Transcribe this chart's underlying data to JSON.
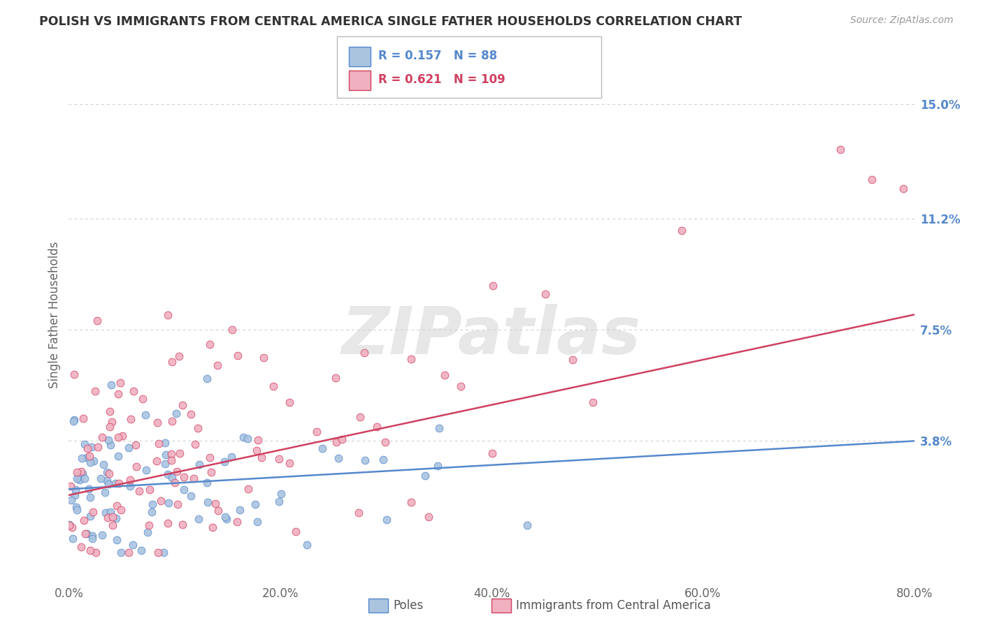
{
  "title": "POLISH VS IMMIGRANTS FROM CENTRAL AMERICA SINGLE FATHER HOUSEHOLDS CORRELATION CHART",
  "source_text": "Source: ZipAtlas.com",
  "watermark": "ZIPatlas",
  "ylabel": "Single Father Households",
  "xlabel_ticks": [
    "0.0%",
    "20.0%",
    "40.0%",
    "60.0%",
    "80.0%"
  ],
  "ytick_labels": [
    "3.8%",
    "7.5%",
    "11.2%",
    "15.0%"
  ],
  "ytick_values": [
    0.038,
    0.075,
    0.112,
    0.15
  ],
  "xlim": [
    0.0,
    0.8
  ],
  "ylim": [
    -0.008,
    0.168
  ],
  "blue_R": 0.157,
  "blue_N": 88,
  "pink_R": 0.621,
  "pink_N": 109,
  "blue_color": "#aac4e0",
  "pink_color": "#f0b0c0",
  "blue_line_color": "#5588cc",
  "pink_line_color": "#d04060",
  "blue_label": "Poles",
  "pink_label": "Immigrants from Central America",
  "title_color": "#333333",
  "grid_color": "#cccccc",
  "background_color": "#ffffff",
  "seed": 42
}
